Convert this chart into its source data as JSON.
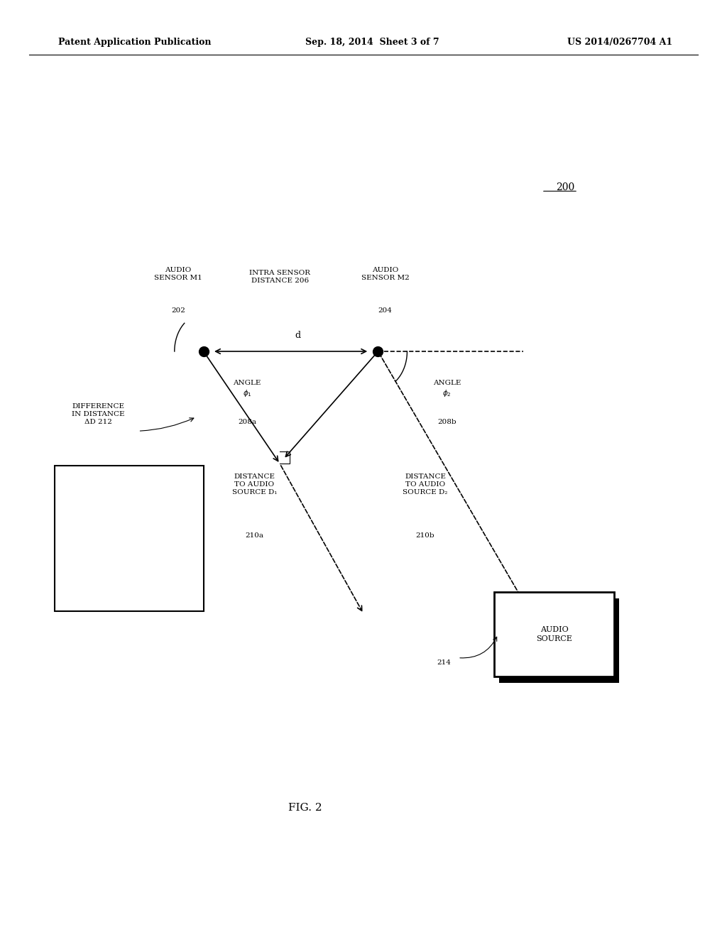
{
  "header_left": "Patent Application Publication",
  "header_center": "Sep. 18, 2014  Sheet 3 of 7",
  "header_right": "US 2014/0267704 A1",
  "fig_label": "FIG. 2",
  "diagram_number": "200",
  "bg_color": "#ffffff",
  "font_size_header": 9,
  "font_size_label": 7.5,
  "font_size_fig": 11,
  "m1x": 0.28,
  "m1y": 0.625,
  "m2x": 0.52,
  "m2y": 0.625
}
